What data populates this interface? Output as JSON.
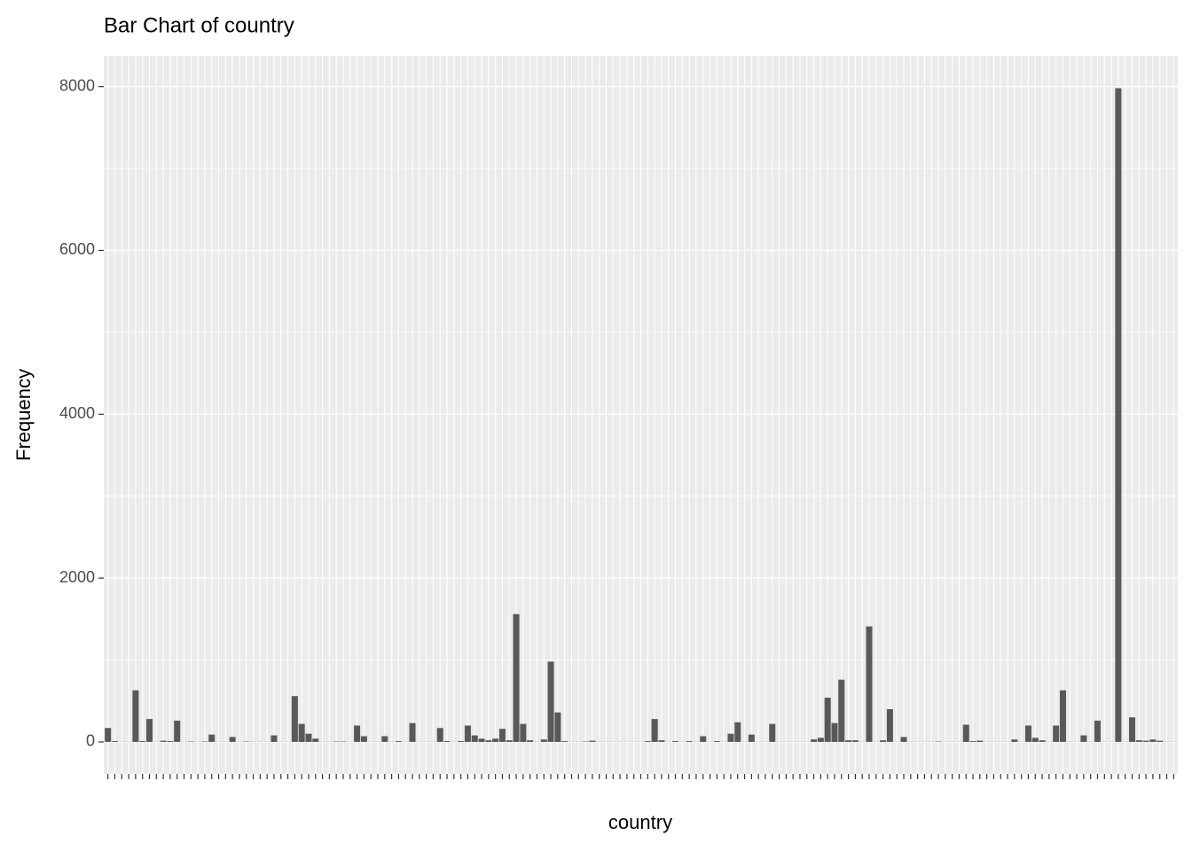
{
  "chart_data": {
    "type": "bar",
    "title": "Bar Chart of country",
    "x_label": "country",
    "y_label": "Frequency",
    "categories": [
      null,
      null,
      null,
      null,
      null,
      null,
      null,
      null,
      null,
      null,
      null,
      null,
      null,
      null,
      null,
      null,
      null,
      null,
      null,
      null,
      null,
      null,
      null,
      null,
      null,
      null,
      null,
      null,
      null,
      null,
      null,
      null,
      null,
      null,
      null,
      null,
      null,
      null,
      null,
      null,
      null,
      null,
      null,
      null,
      null,
      null,
      null,
      null,
      null,
      null,
      null,
      null,
      null,
      null,
      null,
      null,
      null,
      null,
      null,
      null,
      null,
      null,
      null,
      null,
      null,
      null,
      null,
      null,
      null,
      null,
      null,
      null,
      null,
      null,
      null,
      null,
      null,
      null,
      null,
      null,
      null,
      null,
      null,
      null,
      null,
      null,
      null,
      null,
      null,
      null,
      null,
      null,
      null,
      null,
      null,
      null,
      null,
      null,
      null,
      null,
      null,
      null,
      null,
      null,
      null,
      null,
      null,
      null,
      null,
      null,
      null,
      null,
      null,
      null,
      null,
      null,
      null,
      null,
      null,
      null,
      null,
      null,
      null,
      null,
      null,
      null,
      null,
      null,
      null,
      null,
      null,
      null,
      null,
      null,
      null,
      null,
      null,
      null,
      null,
      null,
      null,
      null,
      null,
      null,
      null,
      null,
      null,
      null,
      null,
      null,
      null,
      null,
      null,
      null,
      null
    ],
    "values": [
      170,
      10,
      2,
      2,
      630,
      10,
      280,
      2,
      15,
      10,
      260,
      2,
      5,
      2,
      5,
      90,
      2,
      2,
      60,
      2,
      5,
      2,
      2,
      2,
      80,
      2,
      2,
      560,
      220,
      100,
      40,
      2,
      2,
      5,
      5,
      2,
      200,
      70,
      2,
      2,
      70,
      2,
      10,
      2,
      230,
      2,
      2,
      2,
      170,
      10,
      2,
      10,
      200,
      80,
      40,
      20,
      40,
      160,
      20,
      1560,
      220,
      20,
      2,
      30,
      980,
      360,
      10,
      2,
      2,
      5,
      15,
      2,
      2,
      2,
      2,
      2,
      2,
      2,
      10,
      280,
      20,
      2,
      10,
      2,
      10,
      2,
      70,
      2,
      10,
      2,
      100,
      240,
      2,
      90,
      2,
      2,
      220,
      2,
      2,
      2,
      2,
      2,
      30,
      50,
      540,
      230,
      760,
      20,
      20,
      2,
      1410,
      2,
      20,
      400,
      2,
      60,
      2,
      2,
      2,
      2,
      5,
      2,
      2,
      2,
      210,
      10,
      15,
      2,
      2,
      2,
      2,
      30,
      2,
      200,
      50,
      20,
      2,
      200,
      630,
      2,
      2,
      80,
      2,
      260,
      2,
      2,
      7980,
      2,
      300,
      20,
      15,
      30,
      15,
      2,
      2
    ],
    "color": "#595959",
    "ylim": [
      -390,
      8375
    ],
    "yticks": [
      0,
      2000,
      4000,
      6000,
      8000
    ],
    "grid": true
  }
}
